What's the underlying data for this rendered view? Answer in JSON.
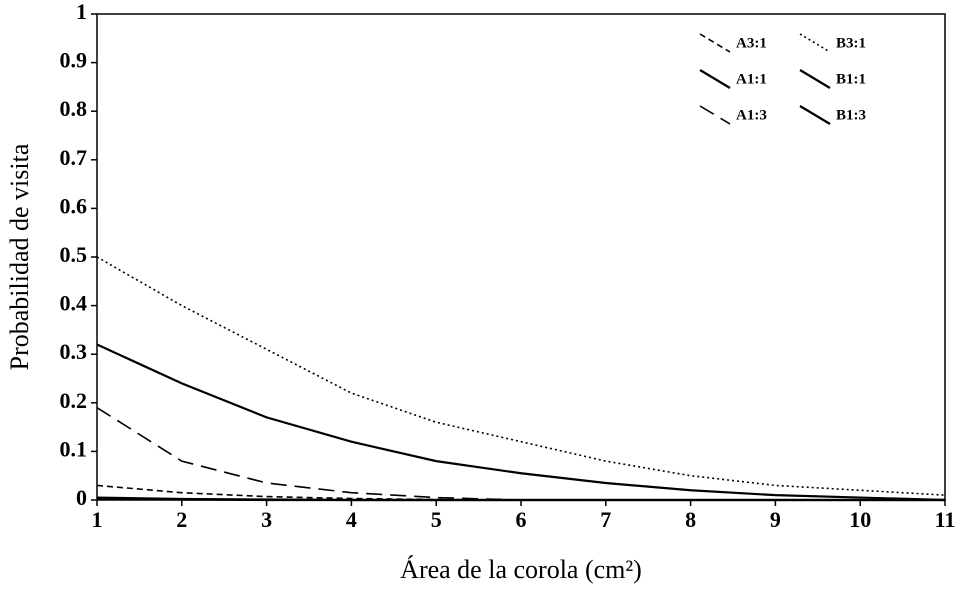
{
  "chart_data": {
    "type": "line",
    "x_label": "Área de la corola (cm²)",
    "y_label": "Probabilidad de visita",
    "x": [
      1,
      2,
      3,
      4,
      5,
      6,
      7,
      8,
      9,
      10,
      11
    ],
    "series": [
      {
        "name": "A3:1",
        "color": "#000000",
        "style": "shortdash",
        "values": [
          0.03,
          0.015,
          0.007,
          0.003,
          0.001,
          0,
          0,
          0,
          0,
          0,
          0
        ]
      },
      {
        "name": "B3:1",
        "color": "#000000",
        "style": "dotted",
        "values": [
          0.5,
          0.4,
          0.31,
          0.22,
          0.16,
          0.12,
          0.08,
          0.05,
          0.03,
          0.02,
          0.01
        ]
      },
      {
        "name": "A1:1",
        "color": "#000000",
        "style": "solid",
        "values": [
          0.32,
          0.24,
          0.17,
          0.12,
          0.08,
          0.055,
          0.035,
          0.02,
          0.01,
          0.005,
          0
        ]
      },
      {
        "name": "B1:1",
        "color": "#000000",
        "style": "solid",
        "values": [
          0.005,
          0.002,
          0.001,
          0,
          0,
          0,
          0,
          0,
          0,
          0,
          0
        ]
      },
      {
        "name": "A1:3",
        "color": "#000000",
        "style": "dashed",
        "values": [
          0.19,
          0.08,
          0.035,
          0.015,
          0.005,
          0,
          0,
          0,
          0,
          0,
          0
        ]
      },
      {
        "name": "B1:3",
        "color": "#000000",
        "style": "solid",
        "values": [
          0.002,
          0.001,
          0,
          0,
          0,
          0,
          0,
          0,
          0,
          0,
          0
        ]
      }
    ],
    "xlim": [
      1,
      11
    ],
    "xticks": [
      1,
      2,
      3,
      4,
      5,
      6,
      7,
      8,
      9,
      10,
      11
    ],
    "ylim": [
      0,
      1
    ],
    "yticks": [
      0,
      0.1,
      0.2,
      0.3,
      0.4,
      0.5,
      0.6,
      0.7,
      0.8,
      0.9,
      1
    ],
    "legend": "upper right",
    "grid": false
  }
}
